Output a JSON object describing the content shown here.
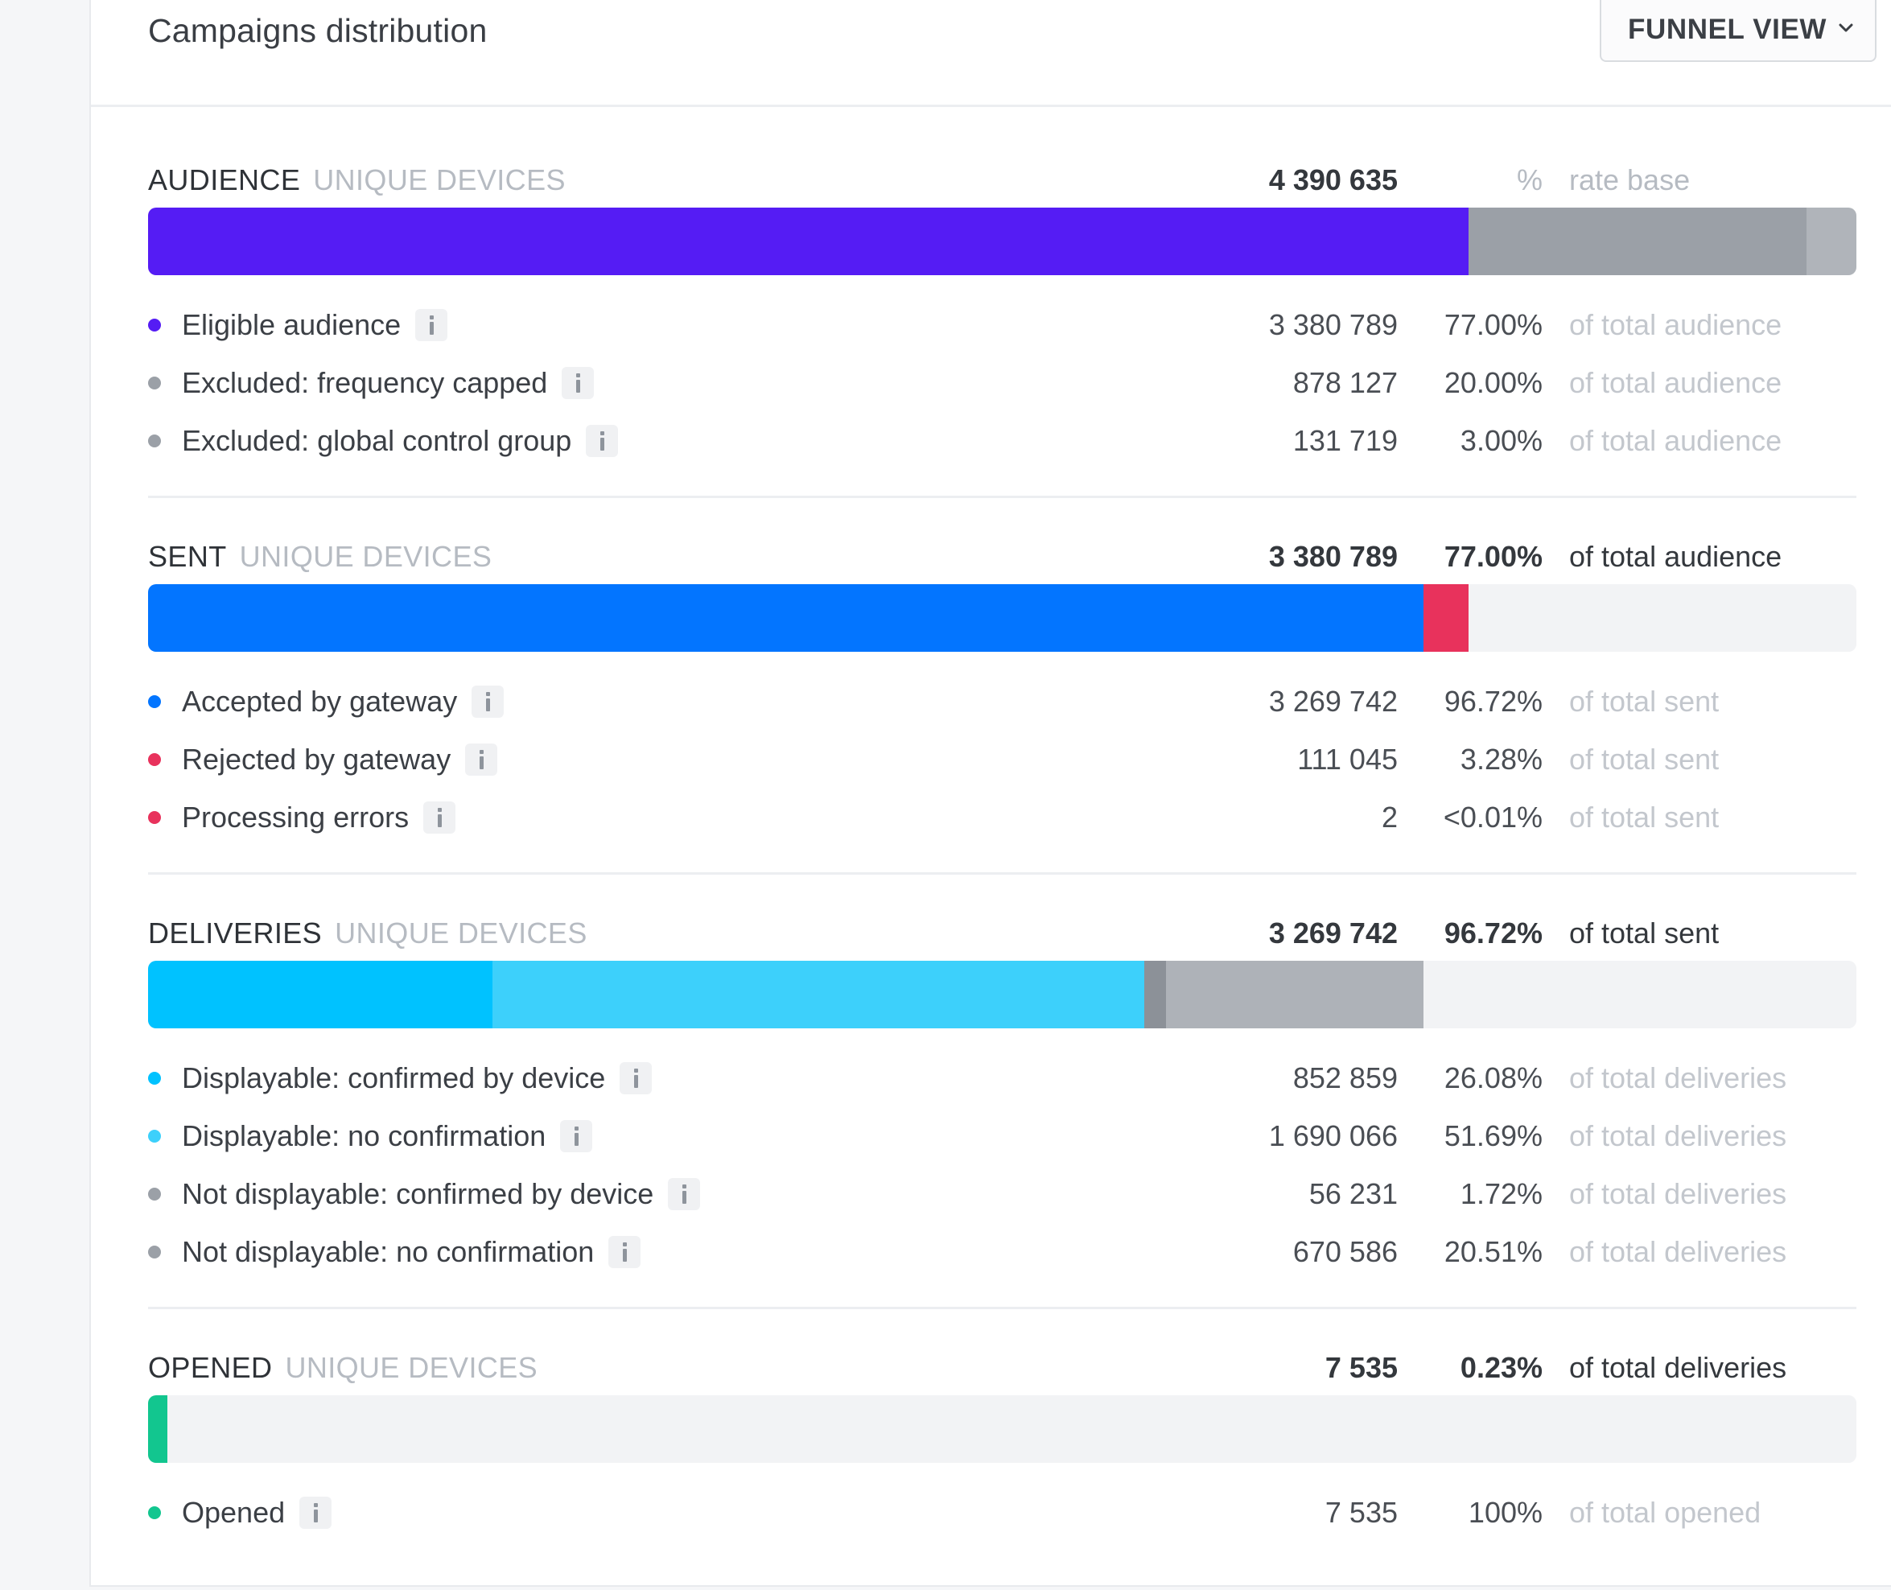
{
  "header": {
    "title": "Campaigns distribution",
    "view_button": "FUNNEL VIEW"
  },
  "audience": {
    "name": "AUDIENCE",
    "sub": "UNIQUE DEVICES",
    "total": "4 390 635",
    "pct": "%",
    "desc": "rate base",
    "bar_segments": [
      {
        "color": "#551cf4",
        "fraction": 0.7729
      },
      {
        "color": "#9ba0a7",
        "fraction": 0.1981
      },
      {
        "color": "#b0b4ba",
        "fraction": 0.029
      }
    ],
    "rows": [
      {
        "label": "Eligible audience",
        "value": "3 380 789",
        "pct": "77.00%",
        "desc": "of total audience",
        "dot": "#551cf4"
      },
      {
        "label": "Excluded: frequency capped",
        "value": "878 127",
        "pct": "20.00%",
        "desc": "of total audience",
        "dot": "#9ba0a7"
      },
      {
        "label": "Excluded: global control group",
        "value": "131 719",
        "pct": "3.00%",
        "desc": "of total audience",
        "dot": "#9ba0a7"
      }
    ]
  },
  "sent": {
    "name": "SENT",
    "sub": "UNIQUE DEVICES",
    "total": "3 380 789",
    "pct": "77.00%",
    "desc": "of total audience",
    "bar_segments": [
      {
        "color": "#0375ff",
        "fraction": 0.7467
      },
      {
        "color": "#e8325c",
        "fraction": 0.0261
      },
      {
        "color": "#f2f3f5",
        "fraction": 0.2272
      }
    ],
    "rows": [
      {
        "label": "Accepted by gateway",
        "value": "3 269 742",
        "pct": "96.72%",
        "desc": "of total sent",
        "dot": "#0375ff"
      },
      {
        "label": "Rejected by gateway",
        "value": "111 045",
        "pct": "3.28%",
        "desc": "of total sent",
        "dot": "#e8325c"
      },
      {
        "label": "Processing errors",
        "value": "2",
        "pct": "<0.01%",
        "desc": "of total sent",
        "dot": "#e8325c"
      }
    ]
  },
  "deliveries": {
    "name": "DELIVERIES",
    "sub": "UNIQUE DEVICES",
    "total": "3 269 742",
    "pct": "96.72%",
    "desc": "of total sent",
    "bar_segments": [
      {
        "color": "#00c2ff",
        "fraction": 0.2017
      },
      {
        "color": "#3dd0fb",
        "fraction": 0.3814
      },
      {
        "color": "#8c9198",
        "fraction": 0.0127
      },
      {
        "color": "#aeb2b8",
        "fraction": 0.1509
      },
      {
        "color": "#f2f3f5",
        "fraction": 0.2533
      }
    ],
    "rows": [
      {
        "label": "Displayable: confirmed by device",
        "value": "852 859",
        "pct": "26.08%",
        "desc": "of total deliveries",
        "dot": "#00c2ff"
      },
      {
        "label": "Displayable: no confirmation",
        "value": "1 690 066",
        "pct": "51.69%",
        "desc": "of total deliveries",
        "dot": "#3dd0fb"
      },
      {
        "label": "Not displayable: confirmed by device",
        "value": "56 231",
        "pct": "1.72%",
        "desc": "of total deliveries",
        "dot": "#9ba0a7"
      },
      {
        "label": "Not displayable: no confirmation",
        "value": "670 586",
        "pct": "20.51%",
        "desc": "of total deliveries",
        "dot": "#9ba0a7"
      }
    ]
  },
  "opened": {
    "name": "OPENED",
    "sub": "UNIQUE DEVICES",
    "total": "7 535",
    "pct": "0.23%",
    "desc": "of total deliveries",
    "bar_segments": [
      {
        "color": "#12c68f",
        "fraction": 0.0113
      },
      {
        "color": "#f2f3f5",
        "fraction": 0.9887
      }
    ],
    "rows": [
      {
        "label": "Opened",
        "value": "7 535",
        "pct": "100%",
        "desc": "of total opened",
        "dot": "#12c68f"
      }
    ]
  }
}
